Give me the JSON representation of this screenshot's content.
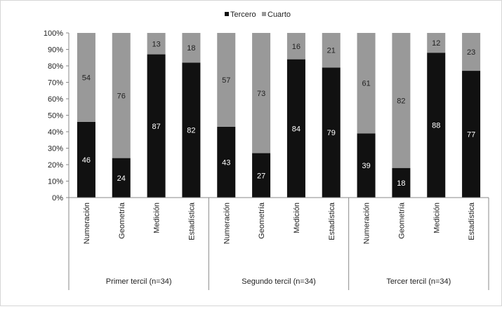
{
  "chart_data": {
    "type": "bar",
    "stacked": true,
    "percent_stacked": true,
    "groups": [
      {
        "label": "Primer tercil (n=34)",
        "categories": [
          "Numeración",
          "Geometría",
          "Medición",
          "Estadística"
        ]
      },
      {
        "label": "Segundo tercil (n=34)",
        "categories": [
          "Numeración",
          "Geometría",
          "Medición",
          "Estadística"
        ]
      },
      {
        "label": "Tercer tercil (n=34)",
        "categories": [
          "Numeración",
          "Geometría",
          "Medición",
          "Estadística"
        ]
      }
    ],
    "series": [
      {
        "name": "Tercero",
        "color": "#111111",
        "values": [
          46,
          24,
          87,
          82,
          43,
          27,
          84,
          79,
          39,
          18,
          88,
          77
        ]
      },
      {
        "name": "Cuarto",
        "color": "#999999",
        "values": [
          54,
          76,
          13,
          18,
          57,
          73,
          16,
          21,
          61,
          82,
          12,
          23
        ]
      }
    ],
    "y_ticks": [
      "0%",
      "10%",
      "20%",
      "30%",
      "40%",
      "50%",
      "60%",
      "70%",
      "80%",
      "90%",
      "100%"
    ],
    "ylim": [
      0,
      100
    ],
    "legend_position": "top-center",
    "grid": false
  }
}
